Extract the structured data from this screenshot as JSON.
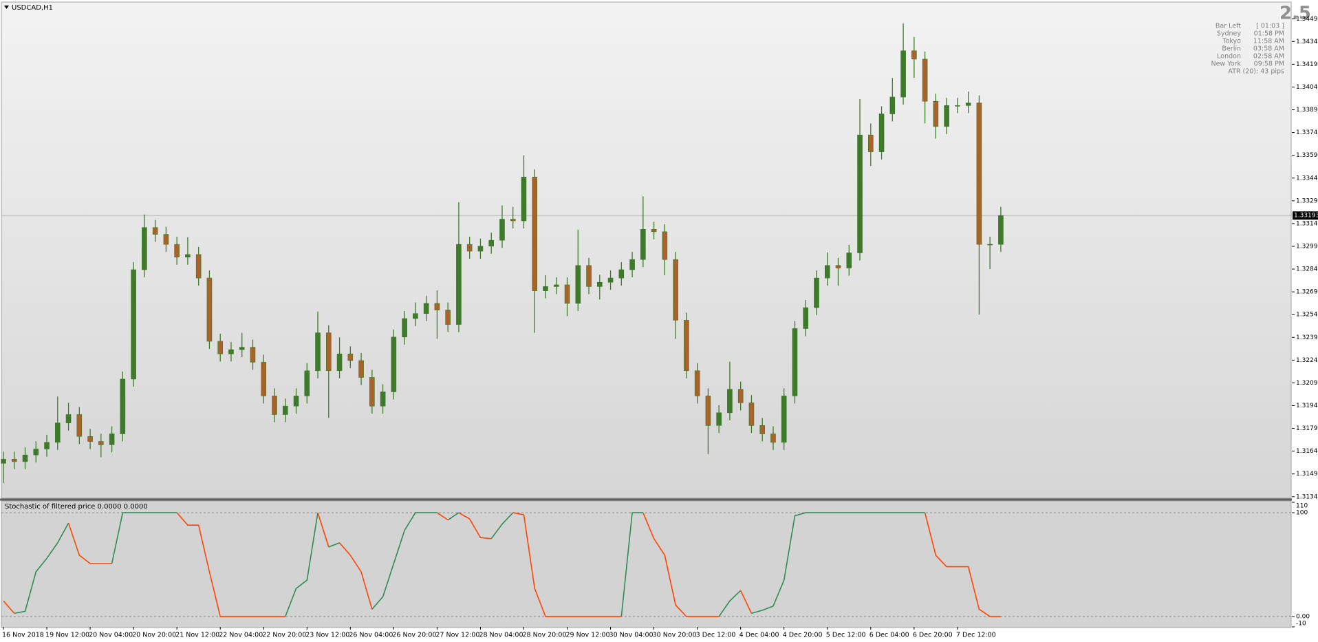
{
  "chart_data": [
    {
      "type": "candlestick",
      "title": "USDCAD,H1",
      "categories": [
        "16 Nov 2018",
        null,
        null,
        null,
        "19 Nov 12:00",
        null,
        null,
        null,
        "20 Nov 04:00",
        null,
        null,
        null,
        "20 Nov 20:00",
        null,
        null,
        null,
        "21 Nov 12:00",
        null,
        null,
        null,
        "22 Nov 04:00",
        null,
        null,
        null,
        "22 Nov 20:00",
        null,
        null,
        null,
        "23 Nov 12:00",
        null,
        null,
        null,
        "26 Nov 04:00",
        null,
        null,
        null,
        "26 Nov 20:00",
        null,
        null,
        null,
        "27 Nov 12:00",
        null,
        null,
        null,
        "28 Nov 04:00",
        null,
        null,
        null,
        "28 Nov 20:00",
        null,
        null,
        null,
        "29 Nov 12:00",
        null,
        null,
        null,
        "30 Nov 04:00",
        null,
        null,
        null,
        "30 Nov 20:00",
        null,
        null,
        null,
        "3 Dec 12:00",
        null,
        null,
        null,
        "4 Dec 04:00",
        null,
        null,
        null,
        "4 Dec 20:00",
        null,
        null,
        null,
        "5 Dec 12:00",
        null,
        null,
        null,
        "6 Dec 04:00",
        null,
        null,
        null,
        "6 Dec 20:00",
        null,
        null,
        null,
        "7 Dec 12:00",
        null,
        null,
        null,
        null
      ],
      "open": [
        1.3156,
        1.31587,
        1.31571,
        1.31615,
        1.31654,
        1.31698,
        1.31826,
        1.31881,
        1.31737,
        1.31704,
        1.31682,
        1.31754,
        1.32115,
        1.32836,
        1.33114,
        1.33069,
        1.33003,
        1.32919,
        1.32936,
        1.32781,
        1.32364,
        1.32281,
        1.32309,
        1.32325,
        1.32226,
        1.32004,
        1.31881,
        1.31937,
        1.32004,
        1.3217,
        1.3242,
        1.3217,
        1.32281,
        1.32237,
        1.32126,
        1.31937,
        1.32031,
        1.32392,
        1.32514,
        1.32547,
        1.32614,
        1.3257,
        1.32475,
        1.33003,
        1.32958,
        1.32991,
        1.3303,
        1.33169,
        1.33158,
        1.33447,
        1.32697,
        1.32725,
        1.32736,
        1.32614,
        1.32864,
        1.32725,
        1.32753,
        1.32781,
        1.32836,
        1.32903,
        1.33102,
        1.33086,
        1.32903,
        1.32503,
        1.3217,
        1.32004,
        1.31809,
        1.31893,
        1.32048,
        1.31959,
        1.31809,
        1.31754,
        1.31698,
        1.32004,
        1.32448,
        1.32586,
        1.32781,
        1.32864,
        1.32847,
        1.32947,
        1.33724,
        1.33613,
        1.33863,
        1.33974,
        1.34279,
        1.34224,
        1.33946,
        1.3378,
        1.33918,
        1.33918,
        1.33935,
        1.33003,
        1.33003
      ],
      "high": [
        1.31637,
        1.31637,
        1.31665,
        1.31704,
        1.31748,
        1.32,
        1.3196,
        1.31931,
        1.31787,
        1.31754,
        1.31804,
        1.32165,
        1.32886,
        1.332,
        1.33164,
        1.33119,
        1.33053,
        1.3305,
        1.32986,
        1.32831,
        1.32414,
        1.32359,
        1.3242,
        1.32375,
        1.32276,
        1.32054,
        1.31987,
        1.32054,
        1.3222,
        1.3256,
        1.3247,
        1.3239,
        1.32331,
        1.32287,
        1.32176,
        1.32081,
        1.32442,
        1.32564,
        1.3262,
        1.32664,
        1.327,
        1.3262,
        1.3328,
        1.33053,
        1.33041,
        1.3308,
        1.3326,
        1.3325,
        1.3359,
        1.33497,
        1.328,
        1.32786,
        1.32786,
        1.331,
        1.32914,
        1.32803,
        1.32831,
        1.32886,
        1.32953,
        1.3332,
        1.33152,
        1.33136,
        1.32953,
        1.32553,
        1.3222,
        1.32054,
        1.31943,
        1.3223,
        1.32098,
        1.32009,
        1.31859,
        1.31804,
        1.32054,
        1.32498,
        1.32636,
        1.32831,
        1.3295,
        1.32914,
        1.33,
        1.3396,
        1.338,
        1.33913,
        1.341,
        1.3446,
        1.3437,
        1.34274,
        1.33996,
        1.33968,
        1.33968,
        1.3401,
        1.33985,
        1.33053,
        1.3325
      ],
      "low": [
        1.3143,
        1.31521,
        1.31521,
        1.31565,
        1.31604,
        1.31648,
        1.31776,
        1.31687,
        1.31654,
        1.316,
        1.31632,
        1.31704,
        1.32065,
        1.32786,
        1.33019,
        1.32953,
        1.32869,
        1.32869,
        1.32731,
        1.32314,
        1.32231,
        1.32231,
        1.32259,
        1.32176,
        1.31954,
        1.31831,
        1.31831,
        1.31887,
        1.31954,
        1.3212,
        1.3186,
        1.3212,
        1.32187,
        1.32076,
        1.31887,
        1.31887,
        1.31981,
        1.32342,
        1.32464,
        1.32497,
        1.3238,
        1.32425,
        1.32425,
        1.32908,
        1.32908,
        1.32941,
        1.3298,
        1.33108,
        1.33108,
        1.3242,
        1.32647,
        1.32675,
        1.3253,
        1.32564,
        1.32675,
        1.3264,
        1.32703,
        1.32731,
        1.32786,
        1.32853,
        1.33036,
        1.328,
        1.3238,
        1.3212,
        1.31954,
        1.3162,
        1.31759,
        1.31843,
        1.31909,
        1.31759,
        1.31704,
        1.31648,
        1.31648,
        1.31954,
        1.32398,
        1.32536,
        1.32731,
        1.3273,
        1.32797,
        1.32897,
        1.3352,
        1.33563,
        1.33813,
        1.33924,
        1.341,
        1.338,
        1.337,
        1.3373,
        1.33868,
        1.33868,
        1.3254,
        1.3284,
        1.32953
      ],
      "close": [
        1.31587,
        1.31571,
        1.31615,
        1.31654,
        1.31698,
        1.31826,
        1.31881,
        1.31737,
        1.31704,
        1.31682,
        1.31754,
        1.32115,
        1.32836,
        1.33114,
        1.33069,
        1.33003,
        1.32919,
        1.32936,
        1.32781,
        1.32364,
        1.32281,
        1.32309,
        1.32325,
        1.32226,
        1.32004,
        1.31881,
        1.31937,
        1.32004,
        1.3217,
        1.3242,
        1.3217,
        1.32281,
        1.32237,
        1.32126,
        1.31937,
        1.32031,
        1.32392,
        1.32514,
        1.32547,
        1.32614,
        1.3257,
        1.32475,
        1.33003,
        1.32958,
        1.32991,
        1.3303,
        1.33169,
        1.33158,
        1.33447,
        1.32697,
        1.32725,
        1.32736,
        1.32614,
        1.32864,
        1.32725,
        1.32753,
        1.32781,
        1.32836,
        1.32903,
        1.33102,
        1.33086,
        1.32903,
        1.32503,
        1.3217,
        1.32004,
        1.31809,
        1.31893,
        1.32048,
        1.31959,
        1.31809,
        1.31754,
        1.31698,
        1.32004,
        1.32448,
        1.32586,
        1.32781,
        1.32864,
        1.32847,
        1.32947,
        1.33724,
        1.33613,
        1.33863,
        1.33974,
        1.34279,
        1.34224,
        1.33946,
        1.3378,
        1.33918,
        1.33918,
        1.33935,
        1.33003,
        1.33003,
        1.33193
      ],
      "up_color": "#3d7a2a",
      "down_color": "#a8632a",
      "current_price": 1.33193,
      "price_line_color": "#b8b8b8",
      "ylim": [
        1.3133,
        1.346
      ],
      "yticks": [
        {
          "value": 1.3449,
          "label": "1.34490"
        },
        {
          "value": 1.3434,
          "label": "1.34340"
        },
        {
          "value": 1.3419,
          "label": "1.34190"
        },
        {
          "value": 1.3404,
          "label": "1.34040"
        },
        {
          "value": 1.3389,
          "label": "1.33890"
        },
        {
          "value": 1.3374,
          "label": "1.33740"
        },
        {
          "value": 1.3359,
          "label": "1.33590"
        },
        {
          "value": 1.3344,
          "label": "1.33440"
        },
        {
          "value": 1.3329,
          "label": "1.33290"
        },
        {
          "value": 1.3314,
          "label": "1.33140"
        },
        {
          "value": 1.3299,
          "label": "1.32990"
        },
        {
          "value": 1.3284,
          "label": "1.32840"
        },
        {
          "value": 1.3269,
          "label": "1.32690"
        },
        {
          "value": 1.3254,
          "label": "1.32540"
        },
        {
          "value": 1.3239,
          "label": "1.32390"
        },
        {
          "value": 1.3224,
          "label": "1.32240"
        },
        {
          "value": 1.3209,
          "label": "1.32090"
        },
        {
          "value": 1.3194,
          "label": "1.31940"
        },
        {
          "value": 1.3179,
          "label": "1.31790"
        },
        {
          "value": 1.3164,
          "label": "1.31640"
        },
        {
          "value": 1.3149,
          "label": "1.31490"
        },
        {
          "value": 1.3134,
          "label": "1.31340"
        }
      ]
    },
    {
      "type": "line",
      "title": "Stochastic of filtered price 0.0000 0.0000",
      "series": [
        {
          "up_color": "#2e8b57",
          "down_color": "#ff4500",
          "values": [
            15,
            3,
            5,
            43,
            56,
            71,
            90,
            59,
            51,
            51,
            51,
            100,
            100,
            100,
            100,
            100,
            100,
            88,
            88,
            43,
            0,
            0,
            0,
            0,
            0,
            0,
            0,
            27,
            35,
            100,
            67,
            71,
            59,
            43,
            7,
            19,
            51,
            83,
            100,
            100,
            100,
            93,
            100,
            94,
            76,
            75,
            89,
            100,
            98,
            27,
            0,
            0,
            0,
            0,
            0,
            0,
            0,
            0,
            100,
            100,
            75,
            59,
            11,
            0,
            0,
            0,
            0,
            15,
            25,
            3,
            6,
            10,
            35,
            97,
            100,
            100,
            100,
            100,
            100,
            100,
            100,
            100,
            100,
            100,
            100,
            100,
            59,
            48,
            48,
            48,
            7,
            0,
            0
          ]
        }
      ],
      "ylim": [
        -10,
        110
      ],
      "yticks": [
        110,
        100,
        {
          "value": 0,
          "label": "0.00"
        },
        -10
      ],
      "levels": [
        100,
        0
      ],
      "level_color": "#888888"
    }
  ],
  "info_panel": {
    "spread": "2.5",
    "rows": [
      [
        "Bar Left",
        "[ 01:03 ]"
      ],
      [
        "Sydney",
        "01:58 PM"
      ],
      [
        "Tokyo",
        "11:58 AM"
      ],
      [
        "Berlin",
        "03:58 AM"
      ],
      [
        "London",
        "02:58 AM"
      ],
      [
        "New York",
        "09:58 PM"
      ]
    ],
    "atr": "ATR (20): 43 pips"
  }
}
